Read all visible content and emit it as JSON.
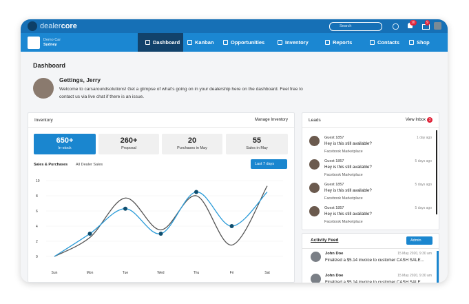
{
  "header": {
    "logo": [
      "dealer",
      "core"
    ],
    "search_placeholder": "Search",
    "notifications": "10",
    "messages": "9"
  },
  "nav": {
    "dealer_name": "Demo Car",
    "dealer_location": "Sydney",
    "items": [
      "Dashboard",
      "Kanban",
      "Opportunities",
      "Inventory",
      "Reports",
      "Contacts",
      "Shop"
    ]
  },
  "page_title": "Dashboard",
  "welcome": {
    "greeting": "Gettings, Jerry",
    "message": "Welcome to carsaroundsolutions! Get a glimpse of what's going on in your dealership here on the dashboard. Feel free to contact us via live chat if there is an issue."
  },
  "inventory": {
    "title": "Inventory",
    "link": "Manage Inventory",
    "stats": [
      {
        "value": "650+",
        "label": "In-stock"
      },
      {
        "value": "260+",
        "label": "Proposal"
      },
      {
        "value": "20",
        "label": "Purchases in May"
      },
      {
        "value": "55",
        "label": "Sales in May"
      }
    ],
    "tabs": [
      "Sales & Purchases",
      "All Dealer Sales"
    ],
    "range": "Last 7 days"
  },
  "chart_data": {
    "type": "line",
    "categories": [
      "Sun",
      "Mon",
      "Tue",
      "Wed",
      "Thu",
      "Fri",
      "Sat"
    ],
    "series": [
      {
        "name": "Sales",
        "color": "#555555",
        "values": [
          0,
          2.5,
          7.7,
          3.5,
          8,
          1.5,
          9.3
        ]
      },
      {
        "name": "Purchases",
        "color": "#2a9bd8",
        "values": [
          0,
          3,
          6.3,
          3,
          8.5,
          4,
          8.5
        ],
        "marker_color": "#0e4d6e"
      }
    ],
    "ylim": [
      0,
      10
    ],
    "yticks": [
      0,
      2,
      4,
      6,
      8,
      10
    ],
    "grid": true
  },
  "leads": {
    "title": "Leads",
    "link": "View Inbox",
    "badge": "3",
    "items": [
      {
        "name": "Guest 1857",
        "message": "Hey is this still available?",
        "source": "Facebook Marketplace",
        "time": "1 day ago"
      },
      {
        "name": "Guest 1857",
        "message": "Hey is this still available?",
        "source": "Facebook Marketplace",
        "time": "5 days ago"
      },
      {
        "name": "Guest 1857",
        "message": "Hey is this still available?",
        "source": "Facebook Marketplace",
        "time": "5 days ago"
      },
      {
        "name": "Guest 1857",
        "message": "Hey is this still available?",
        "source": "Facebook Marketplace",
        "time": "5 days ago"
      }
    ]
  },
  "activity": {
    "title": "Activity Feed",
    "filter": "Admin",
    "items": [
      {
        "name": "John Doe",
        "time": "15 May 2020, 9:30 am",
        "text": "Finalized a $5.14 invoice to customer CASH SALE..."
      },
      {
        "name": "John Doe",
        "time": "15 May 2020, 9:30 am",
        "text": "Finalized a $5.14 invoice to customer CASH SALE..."
      }
    ]
  }
}
